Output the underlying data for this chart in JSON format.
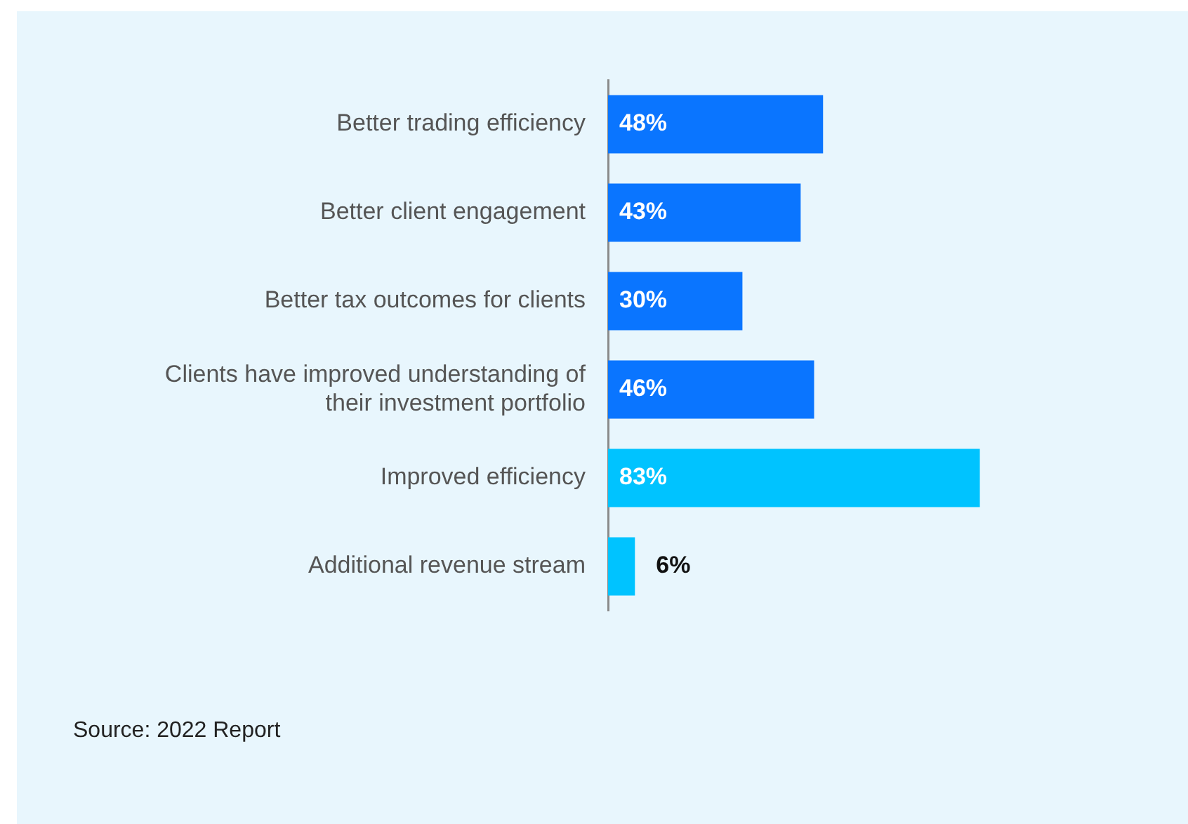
{
  "chart_data": {
    "type": "bar",
    "orientation": "horizontal",
    "categories": [
      "Better trading efficiency",
      "Better client engagement",
      "Better tax outcomes for clients",
      "Clients have improved understanding of their investment portfolio",
      "Improved efficiency",
      "Additional revenue stream"
    ],
    "values": [
      48,
      43,
      30,
      46,
      83,
      6
    ],
    "colors": [
      "#0a75ff",
      "#0a75ff",
      "#0a75ff",
      "#0a75ff",
      "#00c3ff",
      "#00c3ff"
    ],
    "value_labels": [
      "48%",
      "43%",
      "30%",
      "46%",
      "83%",
      "6%"
    ],
    "tick_labels": "y",
    "legend": false,
    "annotations": [
      "Source: 2022 Report"
    ]
  }
}
